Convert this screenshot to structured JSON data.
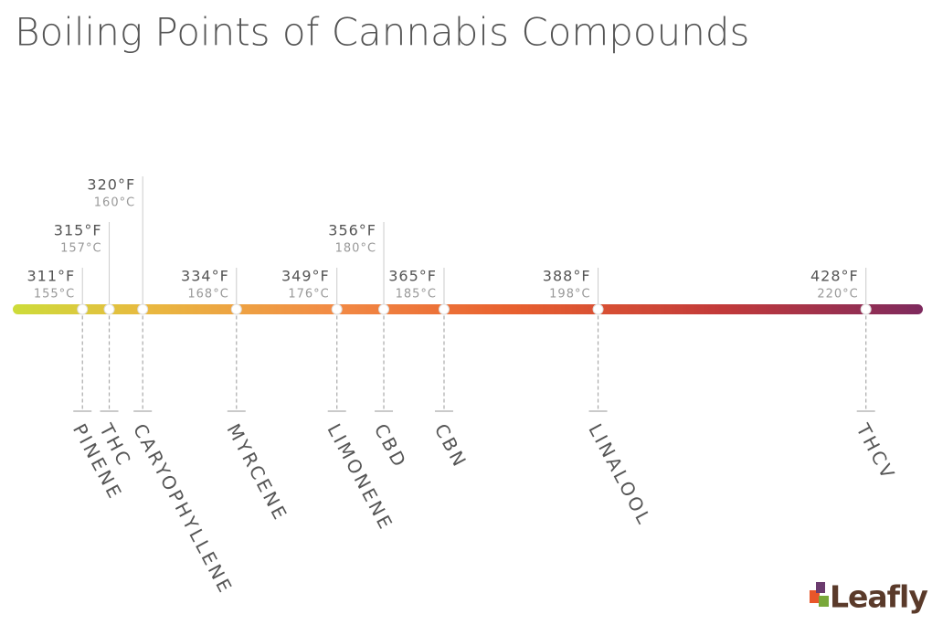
{
  "chart_data": {
    "type": "timeline",
    "title": "Boiling Points of Cannabis Compounds",
    "categories": [
      "PINENE",
      "THC",
      "CARYOPHYLLENE",
      "MYRCENE",
      "LIMONENE",
      "CBD",
      "CBN",
      "LINALOOL",
      "THCV"
    ],
    "values": [
      311,
      315,
      320,
      334,
      349,
      356,
      365,
      388,
      428
    ],
    "value_labels": [
      "311°F",
      "315°F",
      "320°F",
      "334°F",
      "349°F",
      "356°F",
      "365°F",
      "388°F",
      "428°F"
    ],
    "celsius_labels": [
      "155°C",
      "157°C",
      "160°C",
      "168°C",
      "176°C",
      "180°C",
      "185°C",
      "198°C",
      "220°C"
    ],
    "xlim": [
      300.6,
      436.5
    ]
  },
  "logo": {
    "text": "Leafly"
  }
}
